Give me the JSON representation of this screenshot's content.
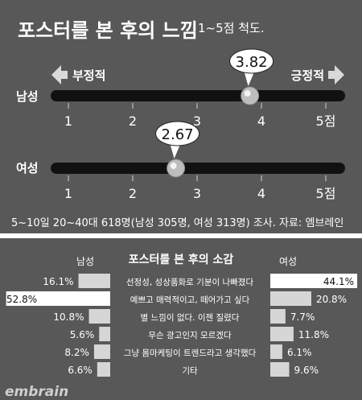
{
  "top": {
    "title": "포스터를 본 후의 느낌",
    "scale_note": "1~5점 척도.",
    "left_label": "부정적",
    "right_label": "긍정적",
    "source": "5~10일 20~40대 618명(남성 305명, 여성 313명) 조사. 자료: 엠브레인"
  },
  "bottom": {
    "title": "포스터를 본 후의 소감",
    "male_header": "남성",
    "female_header": "여성",
    "watermark": "embrain"
  },
  "chart_data": [
    {
      "type": "scatter",
      "title": "포스터를 본 후의 느낌",
      "note": "1~5점 척도.",
      "xlim": [
        1,
        5
      ],
      "tick_labels": [
        "1",
        "2",
        "3",
        "4",
        "5점"
      ],
      "series": [
        {
          "name": "남성",
          "value": 3.82,
          "label": "3.82"
        },
        {
          "name": "여성",
          "value": 2.67,
          "label": "2.67"
        }
      ]
    },
    {
      "type": "bar",
      "title": "포스터를 본 후의 소감",
      "categories": [
        "선정성, 성상품화로 기분이 나빠졌다",
        "예쁘고 매력적이고, 떼어가고 싶다",
        "별 느낌이 없다. 이젠 질렸다",
        "무슨 광고인지 모르겠다",
        "그냥 몸마케팅이 트렌드라고 생각했다",
        "기타"
      ],
      "series": [
        {
          "name": "남성",
          "values": [
            16.1,
            52.8,
            10.8,
            5.6,
            8.2,
            6.6
          ],
          "labels": [
            "16.1%",
            "52.8%",
            "10.8%",
            "5.6%",
            "8.2%",
            "6.6%"
          ]
        },
        {
          "name": "여성",
          "values": [
            44.1,
            20.8,
            7.7,
            11.8,
            6.1,
            9.6
          ],
          "labels": [
            "44.1%",
            "20.8%",
            "7.7%",
            "11.8%",
            "6.1%",
            "9.6%"
          ]
        }
      ],
      "highlight_color": "#ffffff",
      "bar_color": "#d6d6d6"
    }
  ]
}
